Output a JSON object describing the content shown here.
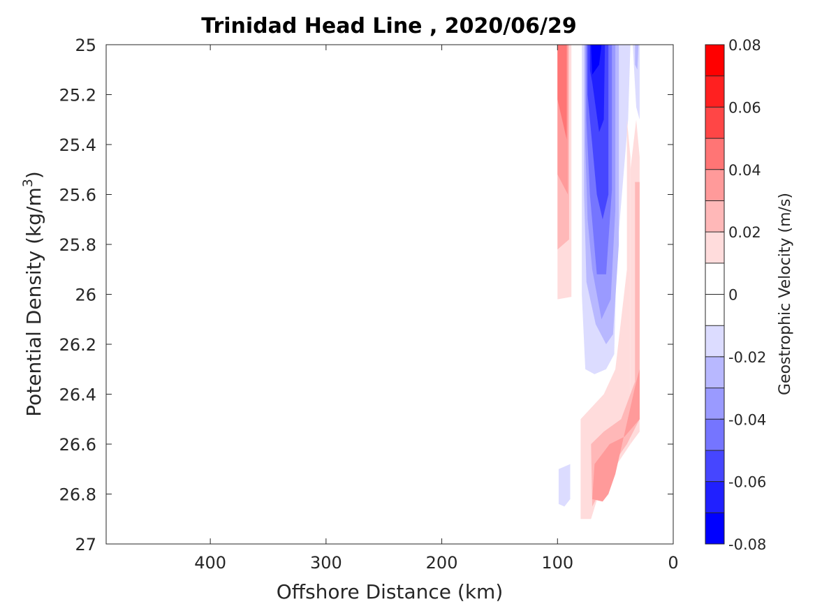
{
  "chart_data": {
    "type": "heatmap",
    "title": "Trinidad Head Line , 2020/06/29",
    "xlabel": "Offshore Distance (km)",
    "ylabel_main": "Potential Density (kg/m",
    "ylabel_sup": "3",
    "ylabel_close": ")",
    "xlim": [
      490,
      0
    ],
    "ylim": [
      25,
      27
    ],
    "x_reversed": true,
    "y_reversed": true,
    "x_ticks": [
      400,
      300,
      200,
      100,
      0
    ],
    "x_tick_labels": [
      "400",
      "300",
      "200",
      "100",
      "0"
    ],
    "y_ticks": [
      25,
      25.2,
      25.4,
      25.6,
      25.8,
      26,
      26.2,
      26.4,
      26.6,
      26.8,
      27
    ],
    "y_tick_labels": [
      "25",
      "25.2",
      "25.4",
      "25.6",
      "25.8",
      "26",
      "26.2",
      "26.4",
      "26.6",
      "26.8",
      "27"
    ],
    "colorbar": {
      "label": "Geostrophic Velocity (m/s)",
      "range": [
        -0.08,
        0.08
      ],
      "step": 0.01,
      "ticks": [
        0.08,
        0.06,
        0.04,
        0.02,
        0,
        -0.02,
        -0.04,
        -0.06,
        -0.08
      ],
      "tick_labels": [
        "0.08",
        "0.06",
        "0.04",
        "0.02",
        "0",
        "-0.02",
        "-0.04",
        "-0.06",
        "-0.08"
      ],
      "colors_top_to_bottom": [
        "#ff0000",
        "#ff2020",
        "#ff4646",
        "#ff7575",
        "#ff9a9a",
        "#ffb8b8",
        "#ffdcdc",
        "#ffffff",
        "#ffffff",
        "#dcdcff",
        "#b8b8ff",
        "#9a9aff",
        "#7575ff",
        "#4646ff",
        "#2020ff",
        "#0000ff"
      ]
    },
    "contour_regions": [
      {
        "level": 0.02,
        "color": "#ffdcdc",
        "polygon": [
          [
            100,
            25
          ],
          [
            88,
            25
          ],
          [
            88,
            26.01
          ],
          [
            100,
            26.02
          ]
        ]
      },
      {
        "level": 0.03,
        "color": "#ffb8b8",
        "polygon": [
          [
            100,
            25
          ],
          [
            90,
            25
          ],
          [
            90,
            25.78
          ],
          [
            100,
            25.82
          ]
        ]
      },
      {
        "level": 0.04,
        "color": "#ff9a9a",
        "polygon": [
          [
            100,
            25
          ],
          [
            91,
            25
          ],
          [
            91,
            25.6
          ],
          [
            100,
            25.52
          ]
        ]
      },
      {
        "level": 0.05,
        "color": "#ff7575",
        "polygon": [
          [
            100,
            25
          ],
          [
            92,
            25
          ],
          [
            92,
            25.38
          ],
          [
            100,
            25.22
          ]
        ]
      },
      {
        "level": -0.02,
        "color": "#dcdcff",
        "polygon": [
          [
            79,
            25
          ],
          [
            37,
            25
          ],
          [
            39,
            25.3
          ],
          [
            49,
            25.86
          ],
          [
            51,
            26.24
          ],
          [
            58,
            26.3
          ],
          [
            68,
            26.32
          ],
          [
            76,
            26.3
          ],
          [
            79,
            26.0
          ]
        ]
      },
      {
        "level": -0.03,
        "color": "#b8b8ff",
        "polygon": [
          [
            77,
            25
          ],
          [
            47,
            25
          ],
          [
            47,
            25.8
          ],
          [
            52,
            26.16
          ],
          [
            58,
            26.2
          ],
          [
            67,
            26.12
          ],
          [
            75,
            25.95
          ],
          [
            77,
            25.6
          ]
        ]
      },
      {
        "level": -0.04,
        "color": "#9a9aff",
        "polygon": [
          [
            76,
            25
          ],
          [
            50,
            25
          ],
          [
            50,
            25.66
          ],
          [
            54,
            26.02
          ],
          [
            62,
            26.1
          ],
          [
            70,
            25.9
          ],
          [
            74,
            25.7
          ],
          [
            76,
            25.4
          ]
        ]
      },
      {
        "level": -0.05,
        "color": "#7575ff",
        "polygon": [
          [
            75,
            25
          ],
          [
            53,
            25
          ],
          [
            53,
            25.58
          ],
          [
            58,
            25.92
          ],
          [
            66,
            25.92
          ],
          [
            72,
            25.6
          ],
          [
            75,
            25.3
          ]
        ]
      },
      {
        "level": -0.06,
        "color": "#4646ff",
        "polygon": [
          [
            74,
            25
          ],
          [
            56,
            25
          ],
          [
            56,
            25.6
          ],
          [
            61,
            25.7
          ],
          [
            66,
            25.6
          ],
          [
            72,
            25.3
          ],
          [
            74,
            25.2
          ]
        ]
      },
      {
        "level": -0.07,
        "color": "#2020ff",
        "polygon": [
          [
            72,
            25
          ],
          [
            59,
            25
          ],
          [
            60,
            25.3
          ],
          [
            64,
            25.35
          ],
          [
            70,
            25.15
          ],
          [
            72,
            25.1
          ]
        ]
      },
      {
        "level": -0.08,
        "color": "#0000ff",
        "polygon": [
          [
            71,
            25
          ],
          [
            62,
            25
          ],
          [
            64,
            25.08
          ],
          [
            70,
            25.12
          ]
        ]
      },
      {
        "level": -0.02,
        "color": "#dcdcff",
        "polygon": [
          [
            35,
            25
          ],
          [
            29,
            25
          ],
          [
            29,
            25.3
          ],
          [
            32,
            25.25
          ]
        ]
      },
      {
        "level": -0.03,
        "color": "#b8b8ff",
        "polygon": [
          [
            33,
            25
          ],
          [
            30,
            25
          ],
          [
            31,
            25.1
          ],
          [
            33,
            25.08
          ]
        ]
      },
      {
        "level": 0.02,
        "color": "#ffdcdc",
        "polygon": [
          [
            40,
            25.3
          ],
          [
            37,
            25.45
          ],
          [
            37,
            26.6
          ],
          [
            63,
            26.78
          ],
          [
            71,
            26.9
          ],
          [
            80,
            26.9
          ],
          [
            80,
            26.5
          ],
          [
            60,
            26.4
          ],
          [
            50,
            26.3
          ],
          [
            40,
            25.9
          ]
        ]
      },
      {
        "level": 0.02,
        "color": "#ffdcdc",
        "polygon": [
          [
            37,
            25.5
          ],
          [
            32,
            25.3
          ],
          [
            29,
            25.45
          ],
          [
            29,
            26.55
          ],
          [
            37,
            26.6
          ]
        ]
      },
      {
        "level": 0.03,
        "color": "#ffb8b8",
        "polygon": [
          [
            33,
            25.55
          ],
          [
            29,
            25.55
          ],
          [
            29,
            26.5
          ],
          [
            40,
            26.6
          ],
          [
            55,
            26.7
          ],
          [
            62,
            26.78
          ],
          [
            70,
            26.85
          ],
          [
            71,
            26.6
          ],
          [
            60,
            26.55
          ],
          [
            45,
            26.5
          ],
          [
            33,
            26.35
          ]
        ]
      },
      {
        "level": 0.04,
        "color": "#ff9a9a",
        "polygon": [
          [
            32,
            26.35
          ],
          [
            29,
            26.3
          ],
          [
            29,
            26.5
          ],
          [
            42,
            26.57
          ],
          [
            55,
            26.6
          ],
          [
            68,
            26.68
          ],
          [
            70,
            26.82
          ],
          [
            61,
            26.83
          ],
          [
            56,
            26.8
          ],
          [
            50,
            26.72
          ]
        ]
      },
      {
        "level": -0.02,
        "color": "#dcdcff",
        "polygon": [
          [
            99,
            26.7
          ],
          [
            89,
            26.68
          ],
          [
            89,
            26.82
          ],
          [
            94,
            26.85
          ],
          [
            99,
            26.84
          ]
        ]
      }
    ]
  }
}
